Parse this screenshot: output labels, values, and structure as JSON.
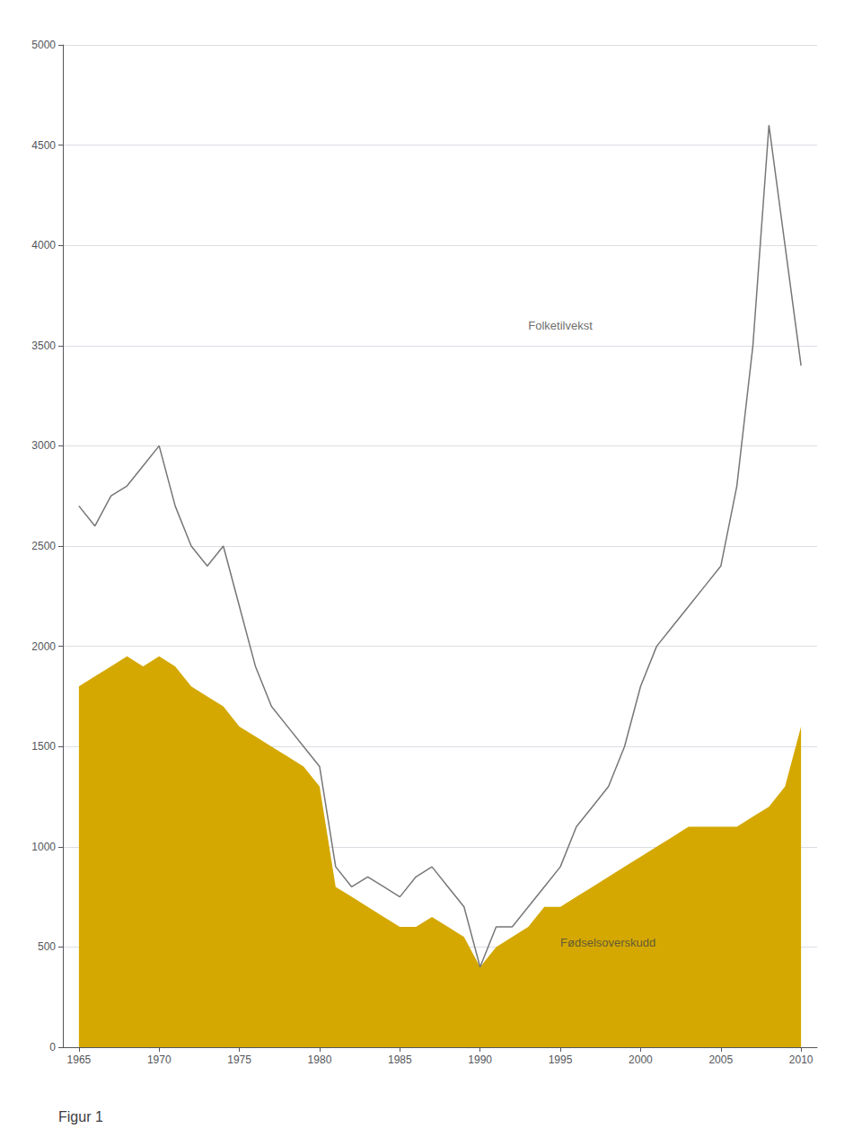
{
  "chart_data": {
    "type": "line",
    "title": "Figur 1",
    "x": [
      1965,
      1966,
      1967,
      1968,
      1969,
      1970,
      1971,
      1972,
      1973,
      1974,
      1975,
      1976,
      1977,
      1978,
      1979,
      1980,
      1981,
      1982,
      1983,
      1984,
      1985,
      1986,
      1987,
      1988,
      1989,
      1990,
      1991,
      1992,
      1993,
      1994,
      1995,
      1996,
      1997,
      1998,
      1999,
      2000,
      2001,
      2002,
      2003,
      2004,
      2005,
      2006,
      2007,
      2008,
      2009,
      2010
    ],
    "series": [
      {
        "type": "area",
        "color": "#d4a800",
        "values": [
          1800,
          1850,
          1900,
          1950,
          1900,
          1950,
          1900,
          1800,
          1750,
          1700,
          1600,
          1550,
          1500,
          1450,
          1400,
          1300,
          800,
          750,
          700,
          650,
          600,
          600,
          650,
          600,
          550,
          400,
          500,
          550,
          600,
          700,
          700,
          750,
          800,
          850,
          900,
          950,
          1000,
          1050,
          1100,
          1100,
          1100,
          1100,
          1150,
          1200,
          1300,
          1600
        ]
      },
      {
        "type": "line",
        "color": "#777777",
        "values": [
          2700,
          2600,
          2750,
          2800,
          2900,
          3000,
          2700,
          2500,
          2400,
          2500,
          2200,
          1900,
          1700,
          1600,
          1500,
          1400,
          900,
          800,
          850,
          800,
          750,
          850,
          900,
          800,
          700,
          400,
          600,
          600,
          700,
          800,
          900,
          1100,
          1200,
          1300,
          1500,
          1800,
          2000,
          2100,
          2200,
          2300,
          2400,
          2800,
          3500,
          4600,
          4000,
          3400
        ]
      }
    ],
    "annotations": [
      {
        "text": "Folketilvekst",
        "x": 1993,
        "y": 3600
      },
      {
        "text": "Fødselsoverskudd",
        "x": 1995,
        "y": 520
      }
    ],
    "xlim": [
      1964,
      2011
    ],
    "xticks": [
      1965,
      1970,
      1975,
      1980,
      1985,
      1990,
      1995,
      2000,
      2005,
      2010
    ],
    "ylim": [
      0,
      5000
    ],
    "yticks": [
      0,
      500,
      1000,
      1500,
      2000,
      2500,
      3000,
      3500,
      4000,
      4500,
      5000
    ],
    "grid": true
  }
}
